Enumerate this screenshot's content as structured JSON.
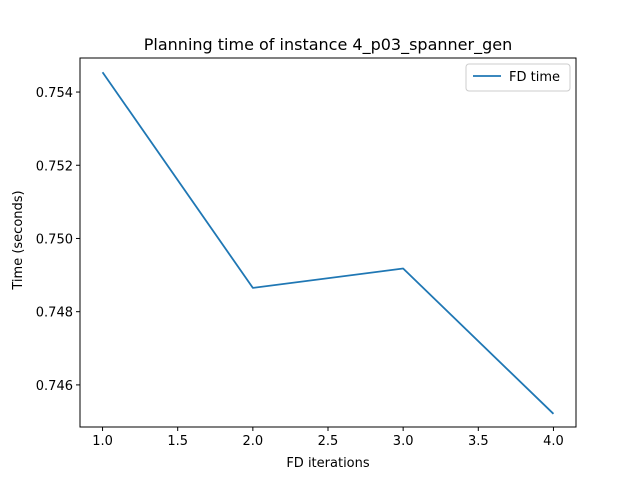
{
  "chart_data": {
    "type": "line",
    "title": "Planning time of instance 4_p03_spanner_gen",
    "xlabel": "FD iterations",
    "ylabel": "Time (seconds)",
    "xlim": [
      0.85,
      4.15
    ],
    "ylim": [
      0.74485,
      0.75493
    ],
    "x_ticks": [
      1.0,
      1.5,
      2.0,
      2.5,
      3.0,
      3.5,
      4.0
    ],
    "x_tick_labels": [
      "1.0",
      "1.5",
      "2.0",
      "2.5",
      "3.0",
      "3.5",
      "4.0"
    ],
    "y_ticks": [
      0.746,
      0.748,
      0.75,
      0.752,
      0.754
    ],
    "y_tick_labels": [
      "0.746",
      "0.748",
      "0.750",
      "0.752",
      "0.754"
    ],
    "grid": false,
    "legend_position": "top-right",
    "series": [
      {
        "name": "FD time",
        "color": "#1f77b4",
        "x": [
          1.0,
          2.0,
          3.0,
          4.0
        ],
        "y": [
          0.75454,
          0.74865,
          0.74918,
          0.74521
        ]
      }
    ]
  }
}
